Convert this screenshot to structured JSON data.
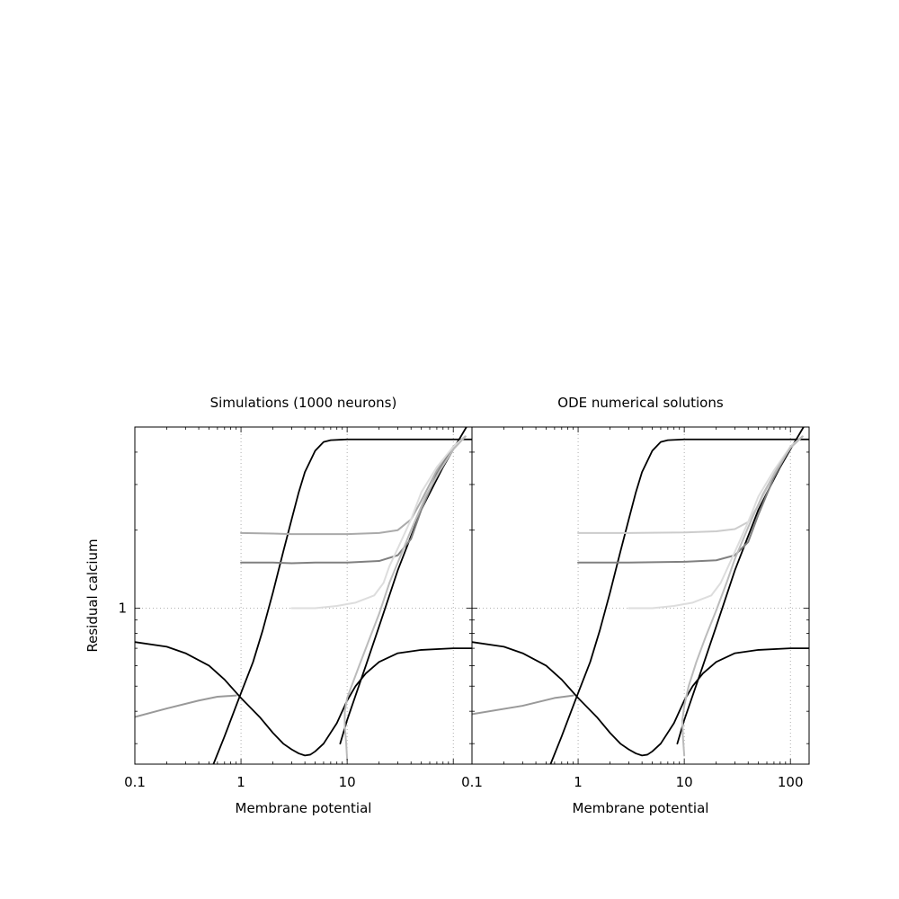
{
  "chart_data": [
    {
      "type": "line",
      "title": "Simulations (1000 neurons)",
      "xlabel": "Membrane potential",
      "ylabel": "Residual calcium",
      "xscale": "log",
      "yscale": "log",
      "xlim": [
        0.1,
        150
      ],
      "ylim": [
        0.25,
        5
      ],
      "xticklabels": [
        "0.1",
        "1",
        "10"
      ],
      "yticklabels": [
        "1"
      ],
      "grid": "dotted",
      "series": [
        {
          "color": "#000000",
          "points": [
            [
              0.1,
              0.74
            ],
            [
              0.2,
              0.71
            ],
            [
              0.3,
              0.67
            ],
            [
              0.5,
              0.6
            ],
            [
              0.7,
              0.53
            ],
            [
              1,
              0.45
            ],
            [
              1.5,
              0.38
            ],
            [
              2,
              0.33
            ],
            [
              2.5,
              0.3
            ],
            [
              3,
              0.285
            ],
            [
              3.5,
              0.275
            ],
            [
              4,
              0.27
            ],
            [
              4.5,
              0.272
            ],
            [
              5,
              0.28
            ],
            [
              6,
              0.3
            ],
            [
              8,
              0.36
            ],
            [
              10,
              0.44
            ],
            [
              12,
              0.5
            ],
            [
              15,
              0.56
            ],
            [
              20,
              0.62
            ],
            [
              30,
              0.67
            ],
            [
              50,
              0.69
            ],
            [
              100,
              0.7
            ],
            [
              150,
              0.7
            ]
          ]
        },
        {
          "color": "#000000",
          "points": [
            [
              0.55,
              0.25
            ],
            [
              0.7,
              0.32
            ],
            [
              0.9,
              0.42
            ],
            [
              1,
              0.47
            ],
            [
              1.3,
              0.62
            ],
            [
              1.6,
              0.82
            ],
            [
              2,
              1.15
            ],
            [
              2.5,
              1.65
            ],
            [
              3,
              2.2
            ],
            [
              3.5,
              2.8
            ],
            [
              4,
              3.35
            ],
            [
              5,
              4.05
            ],
            [
              6,
              4.38
            ],
            [
              7,
              4.45
            ],
            [
              10,
              4.48
            ],
            [
              150,
              4.48
            ]
          ]
        },
        {
          "color": "#000000",
          "points": [
            [
              8.6,
              0.3
            ],
            [
              10,
              0.37
            ],
            [
              15,
              0.6
            ],
            [
              20,
              0.85
            ],
            [
              30,
              1.4
            ],
            [
              50,
              2.4
            ],
            [
              80,
              3.5
            ],
            [
              100,
              4.1
            ],
            [
              133,
              5
            ]
          ]
        },
        {
          "color": "#aaaaaa",
          "points": [
            [
              1,
              1.95
            ],
            [
              2,
              1.94
            ],
            [
              3,
              1.93
            ],
            [
              5,
              1.93
            ],
            [
              10,
              1.93
            ],
            [
              20,
              1.95
            ],
            [
              30,
              2.0
            ],
            [
              40,
              2.2
            ],
            [
              50,
              2.6
            ],
            [
              70,
              3.4
            ],
            [
              100,
              4.2
            ],
            [
              130,
              4.6
            ]
          ]
        },
        {
          "color": "#808080",
          "points": [
            [
              1,
              1.5
            ],
            [
              2,
              1.5
            ],
            [
              3,
              1.49
            ],
            [
              5,
              1.5
            ],
            [
              10,
              1.5
            ],
            [
              20,
              1.52
            ],
            [
              30,
              1.6
            ],
            [
              40,
              1.85
            ],
            [
              50,
              2.4
            ],
            [
              70,
              3.3
            ],
            [
              100,
              4.2
            ],
            [
              130,
              4.6
            ]
          ]
        },
        {
          "color": "#dddddd",
          "points": [
            [
              3,
              1.0
            ],
            [
              5,
              1.0
            ],
            [
              8,
              1.02
            ],
            [
              12,
              1.05
            ],
            [
              18,
              1.12
            ],
            [
              22,
              1.25
            ],
            [
              25,
              1.45
            ],
            [
              30,
              1.7
            ],
            [
              40,
              2.2
            ],
            [
              50,
              2.8
            ],
            [
              70,
              3.5
            ],
            [
              100,
              4.2
            ],
            [
              130,
              4.6
            ]
          ]
        },
        {
          "color": "#bbbbbb",
          "points": [
            [
              10,
              0.26
            ],
            [
              9.8,
              0.3
            ],
            [
              9.5,
              0.35
            ],
            [
              9.5,
              0.4
            ],
            [
              10,
              0.45
            ],
            [
              11,
              0.5
            ],
            [
              13,
              0.6
            ],
            [
              16,
              0.75
            ],
            [
              20,
              0.95
            ],
            [
              25,
              1.25
            ],
            [
              30,
              1.5
            ],
            [
              40,
              2.0
            ],
            [
              55,
              2.7
            ],
            [
              75,
              3.4
            ],
            [
              100,
              4.1
            ],
            [
              130,
              4.6
            ]
          ]
        },
        {
          "color": "#999999",
          "points": [
            [
              0.1,
              0.38
            ],
            [
              0.2,
              0.41
            ],
            [
              0.4,
              0.44
            ],
            [
              0.6,
              0.455
            ],
            [
              0.9,
              0.46
            ]
          ]
        }
      ]
    },
    {
      "type": "line",
      "title": "ODE numerical solutions",
      "xlabel": "Membrane potential",
      "ylabel": "",
      "xscale": "log",
      "yscale": "log",
      "xlim": [
        0.1,
        150
      ],
      "ylim": [
        0.25,
        5
      ],
      "xticklabels": [
        "0.1",
        "1",
        "10",
        "100"
      ],
      "yticklabels": [],
      "grid": "dotted",
      "series": [
        {
          "color": "#000000",
          "points": [
            [
              0.1,
              0.74
            ],
            [
              0.2,
              0.71
            ],
            [
              0.3,
              0.67
            ],
            [
              0.5,
              0.6
            ],
            [
              0.7,
              0.53
            ],
            [
              1,
              0.45
            ],
            [
              1.5,
              0.38
            ],
            [
              2,
              0.33
            ],
            [
              2.5,
              0.3
            ],
            [
              3,
              0.285
            ],
            [
              3.5,
              0.275
            ],
            [
              4,
              0.27
            ],
            [
              4.5,
              0.272
            ],
            [
              5,
              0.28
            ],
            [
              6,
              0.3
            ],
            [
              8,
              0.36
            ],
            [
              10,
              0.44
            ],
            [
              12,
              0.5
            ],
            [
              15,
              0.56
            ],
            [
              20,
              0.62
            ],
            [
              30,
              0.67
            ],
            [
              50,
              0.69
            ],
            [
              100,
              0.7
            ],
            [
              150,
              0.7
            ]
          ]
        },
        {
          "color": "#000000",
          "points": [
            [
              0.55,
              0.25
            ],
            [
              0.7,
              0.32
            ],
            [
              0.9,
              0.42
            ],
            [
              1,
              0.47
            ],
            [
              1.3,
              0.62
            ],
            [
              1.6,
              0.82
            ],
            [
              2,
              1.15
            ],
            [
              2.5,
              1.65
            ],
            [
              3,
              2.2
            ],
            [
              3.5,
              2.8
            ],
            [
              4,
              3.35
            ],
            [
              5,
              4.05
            ],
            [
              6,
              4.38
            ],
            [
              7,
              4.45
            ],
            [
              10,
              4.48
            ],
            [
              150,
              4.48
            ]
          ]
        },
        {
          "color": "#000000",
          "points": [
            [
              8.6,
              0.3
            ],
            [
              10,
              0.37
            ],
            [
              15,
              0.6
            ],
            [
              20,
              0.85
            ],
            [
              30,
              1.4
            ],
            [
              50,
              2.4
            ],
            [
              80,
              3.5
            ],
            [
              100,
              4.1
            ],
            [
              133,
              5
            ]
          ]
        },
        {
          "color": "#cccccc",
          "points": [
            [
              1,
              1.95
            ],
            [
              3,
              1.95
            ],
            [
              10,
              1.96
            ],
            [
              20,
              1.98
            ],
            [
              30,
              2.02
            ],
            [
              40,
              2.15
            ],
            [
              50,
              2.5
            ],
            [
              70,
              3.3
            ],
            [
              100,
              4.2
            ],
            [
              130,
              4.6
            ]
          ]
        },
        {
          "color": "#808080",
          "points": [
            [
              1,
              1.5
            ],
            [
              3,
              1.5
            ],
            [
              10,
              1.51
            ],
            [
              20,
              1.53
            ],
            [
              30,
              1.6
            ],
            [
              40,
              1.8
            ],
            [
              50,
              2.3
            ],
            [
              70,
              3.2
            ],
            [
              100,
              4.2
            ],
            [
              130,
              4.6
            ]
          ]
        },
        {
          "color": "#dddddd",
          "points": [
            [
              3,
              1.0
            ],
            [
              5,
              1.0
            ],
            [
              8,
              1.02
            ],
            [
              12,
              1.05
            ],
            [
              18,
              1.12
            ],
            [
              22,
              1.25
            ],
            [
              25,
              1.4
            ],
            [
              30,
              1.65
            ],
            [
              40,
              2.15
            ],
            [
              50,
              2.7
            ],
            [
              70,
              3.4
            ],
            [
              100,
              4.2
            ],
            [
              130,
              4.6
            ]
          ]
        },
        {
          "color": "#bbbbbb",
          "points": [
            [
              10,
              0.27
            ],
            [
              9.7,
              0.32
            ],
            [
              9.6,
              0.37
            ],
            [
              10,
              0.42
            ],
            [
              11,
              0.5
            ],
            [
              13,
              0.62
            ],
            [
              16,
              0.78
            ],
            [
              20,
              0.98
            ],
            [
              25,
              1.25
            ],
            [
              30,
              1.55
            ],
            [
              40,
              2.05
            ],
            [
              55,
              2.75
            ],
            [
              75,
              3.45
            ],
            [
              100,
              4.15
            ],
            [
              130,
              4.6
            ]
          ]
        },
        {
          "color": "#999999",
          "points": [
            [
              0.1,
              0.39
            ],
            [
              0.3,
              0.42
            ],
            [
              0.6,
              0.45
            ],
            [
              0.9,
              0.46
            ]
          ]
        }
      ]
    }
  ]
}
